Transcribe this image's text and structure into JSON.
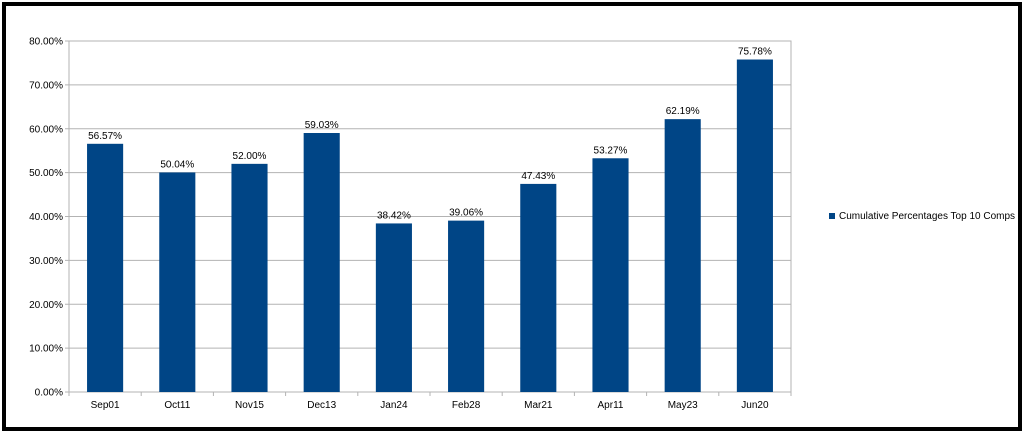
{
  "chart_data": {
    "type": "bar",
    "title": "",
    "xlabel": "",
    "ylabel": "",
    "categories": [
      "Sep01",
      "Oct11",
      "Nov15",
      "Dec13",
      "Jan24",
      "Feb28",
      "Mar21",
      "Apr11",
      "May23",
      "Jun20"
    ],
    "series": [
      {
        "name": "Cumulative Percentages Top 10 Comps",
        "values": [
          56.57,
          50.04,
          52.0,
          59.03,
          38.42,
          39.06,
          47.43,
          53.27,
          62.19,
          75.78
        ],
        "labels": [
          "56.57%",
          "50.04%",
          "52.00%",
          "59.03%",
          "38.42%",
          "39.06%",
          "47.43%",
          "53.27%",
          "62.19%",
          "75.78%"
        ],
        "color": "#004586"
      }
    ],
    "ylim": [
      0,
      80
    ],
    "yticks": [
      0,
      10,
      20,
      30,
      40,
      50,
      60,
      70,
      80
    ],
    "ytick_labels": [
      "0.00%",
      "10.00%",
      "20.00%",
      "30.00%",
      "40.00%",
      "50.00%",
      "60.00%",
      "70.00%",
      "80.00%"
    ],
    "grid": true,
    "legend_position": "right",
    "colors": {
      "grid": "#b3b3b3",
      "axis": "#b3b3b3",
      "border": "#000000"
    }
  }
}
